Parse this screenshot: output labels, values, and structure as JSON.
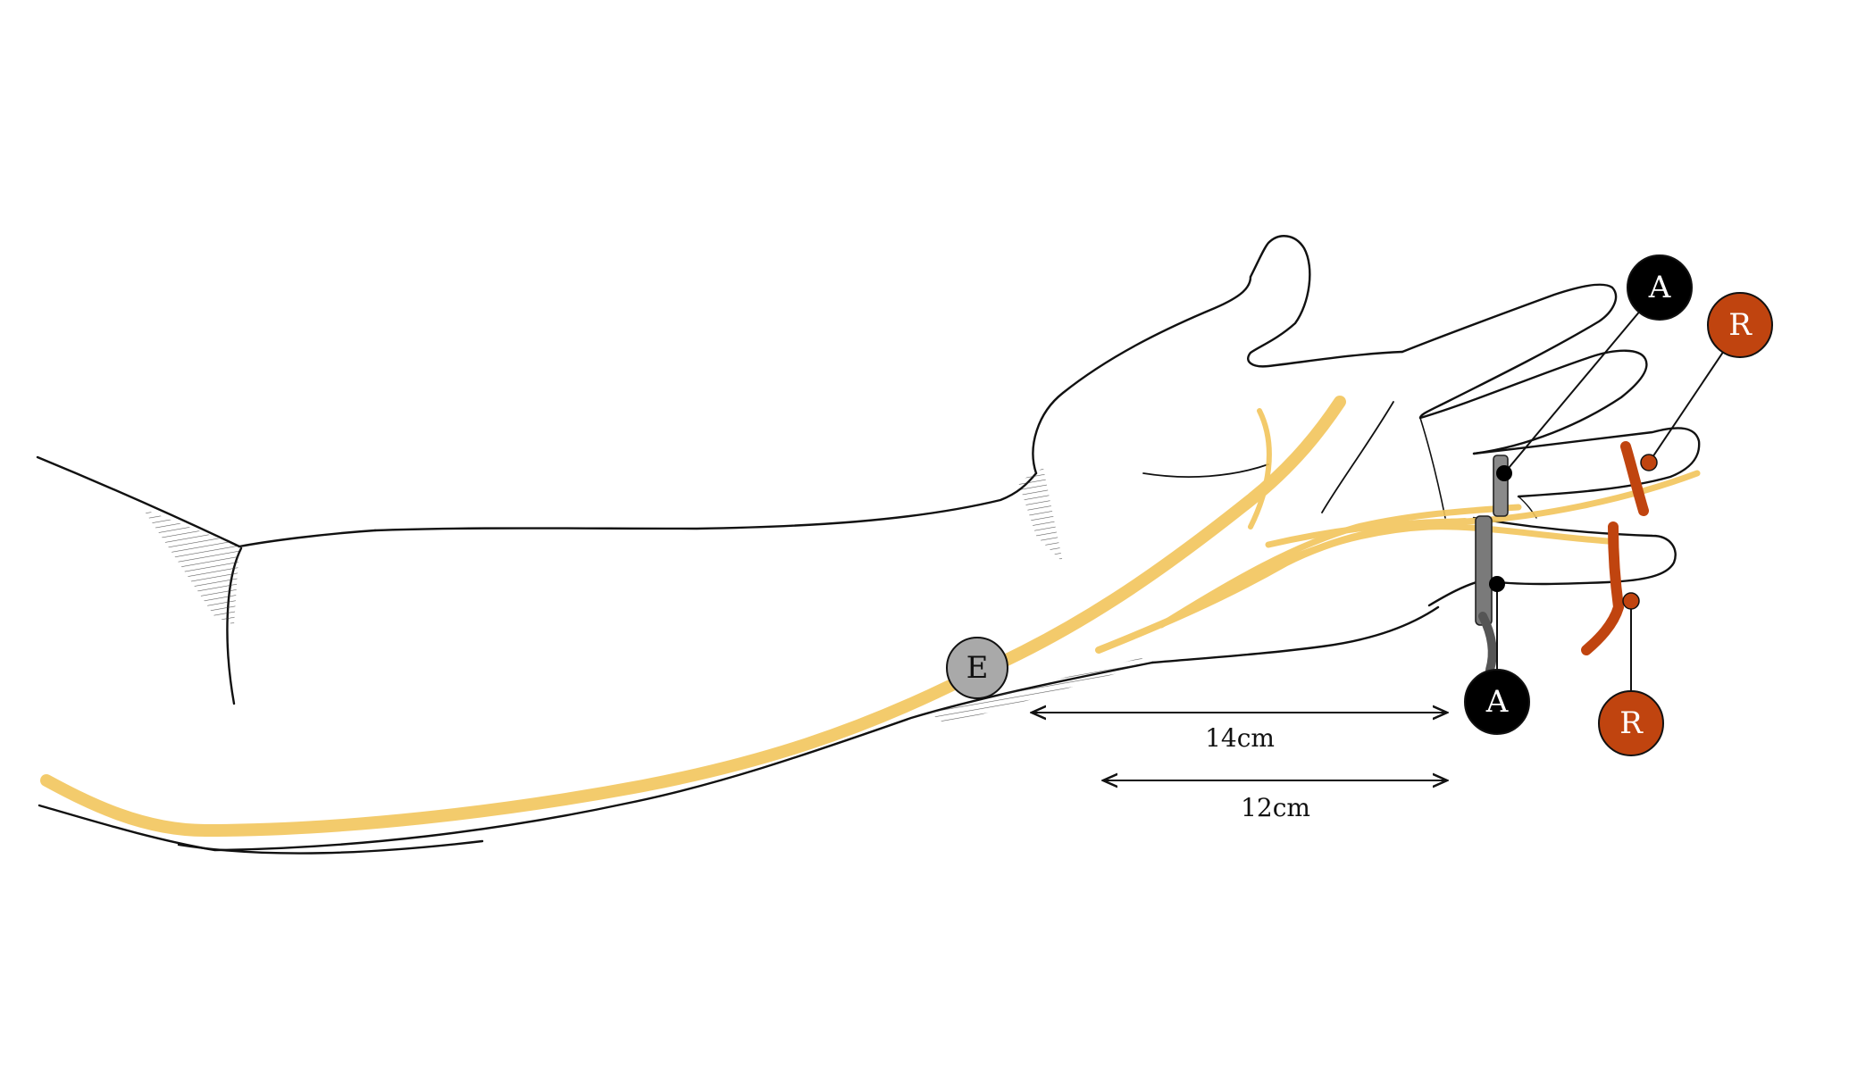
{
  "diagram": {
    "colors": {
      "outline": "#111111",
      "nerve": "#f2c55c",
      "recording_ring": "#c0440f",
      "active_ring": "#6a6a6a",
      "stim_marker": "#a9a9a9",
      "background": "#ffffff"
    },
    "markers": {
      "active_index": {
        "label": "A",
        "color": "#000000",
        "text_color": "#ffffff",
        "icon": "black-circle"
      },
      "active_middle": {
        "label": "A",
        "color": "#000000",
        "text_color": "#ffffff",
        "icon": "black-circle"
      },
      "reference_index": {
        "label": "R",
        "color": "#c0440f",
        "text_color": "#ffffff",
        "icon": "orange-circle"
      },
      "reference_middle": {
        "label": "R",
        "color": "#c0440f",
        "text_color": "#ffffff",
        "icon": "orange-circle"
      },
      "stimulation": {
        "label": "E",
        "color": "#a9a9a9",
        "text_color": "#111111",
        "icon": "grey-circle"
      }
    },
    "measurements": {
      "upper": "14cm",
      "lower": "12cm"
    }
  }
}
